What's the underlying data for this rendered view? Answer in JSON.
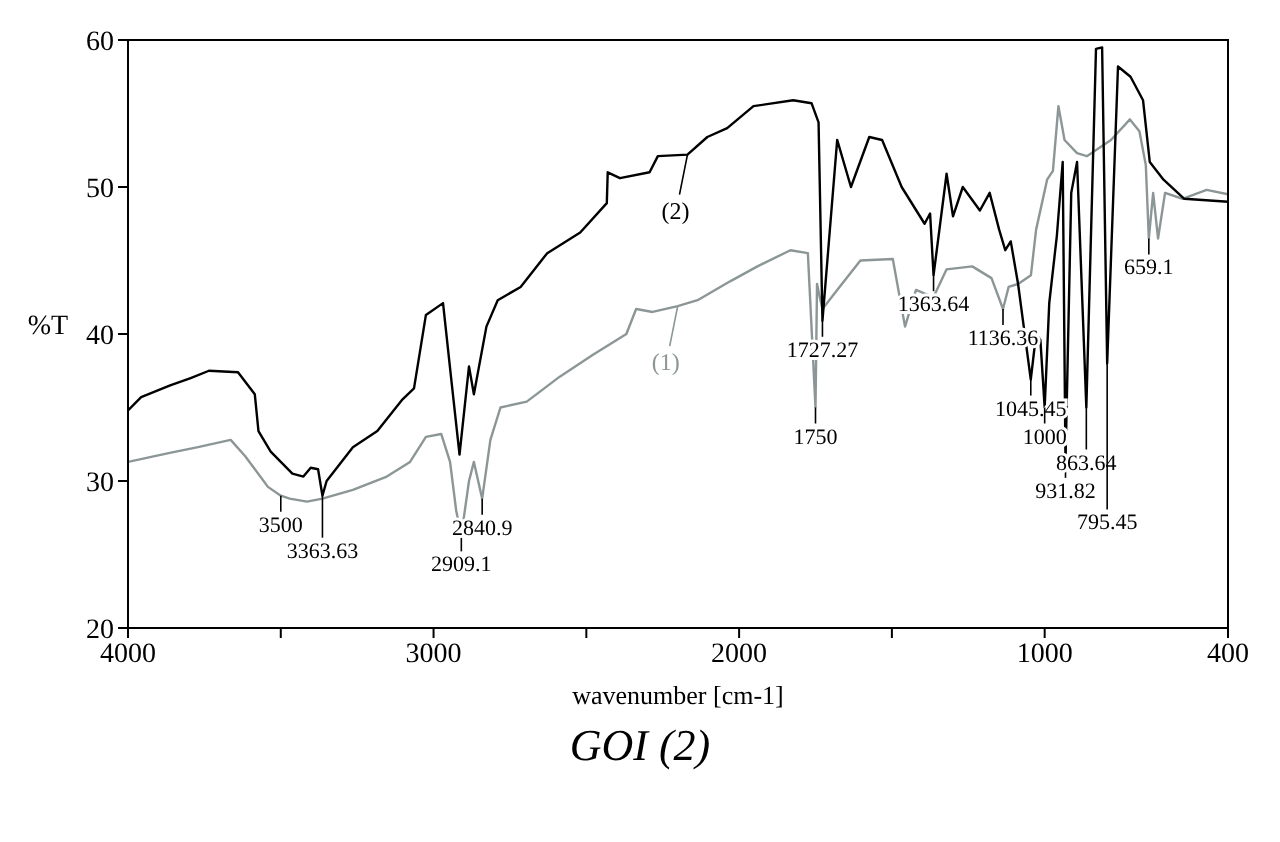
{
  "chart_data": {
    "type": "line",
    "title": "GOI (2)",
    "xlabel": "wavenumber [cm-1]",
    "ylabel": "%T",
    "xlim": [
      4000,
      400
    ],
    "xticks": [
      4000,
      {
        "value": 3500,
        "label": null
      },
      3000,
      {
        "value": 2500,
        "label": null
      },
      2000,
      {
        "value": 1500,
        "label": null
      },
      1000,
      400
    ],
    "ylim": [
      20,
      60
    ],
    "yticks": [
      20,
      30,
      40,
      50,
      60
    ],
    "grid": false,
    "legend": "top",
    "series": [
      {
        "name": "(1)",
        "color": "#8c9696",
        "x": [
          4000,
          3867,
          3771,
          3664,
          3617,
          3542,
          3500,
          3471,
          3414,
          3363.63,
          3264,
          3153,
          3077,
          3025,
          2975,
          2946,
          2926,
          2909.1,
          2884,
          2868,
          2840.9,
          2814,
          2781,
          2695,
          2587,
          2477,
          2369,
          2337,
          2283,
          2201,
          2136,
          2028,
          1940,
          1832,
          1775,
          1750,
          1745,
          1736,
          1727.27,
          1679,
          1603,
          1497,
          1457,
          1421,
          1364,
          1321,
          1237,
          1174,
          1136.36,
          1118,
          1087,
          1045,
          1028,
          992,
          973,
          955,
          935,
          894,
          862,
          783,
          721,
          690,
          669,
          659.1,
          645,
          629,
          606,
          549,
          470,
          400
        ],
        "values": [
          31.3,
          31.9,
          32.3,
          32.8,
          31.7,
          29.6,
          29.0,
          28.8,
          28.6,
          28.8,
          29.4,
          30.3,
          31.3,
          33.0,
          33.2,
          31.3,
          28.0,
          26.3,
          30.0,
          31.3,
          28.8,
          32.8,
          35.0,
          35.4,
          37.1,
          38.6,
          40.0,
          41.7,
          41.5,
          41.9,
          42.3,
          43.6,
          44.6,
          45.7,
          45.5,
          35.0,
          43.4,
          42.5,
          41.7,
          43.0,
          45.0,
          45.1,
          40.5,
          43.0,
          42.5,
          44.4,
          44.6,
          43.8,
          41.7,
          43.2,
          43.4,
          44.0,
          47.1,
          50.5,
          51.1,
          55.5,
          53.2,
          52.3,
          52.1,
          53.2,
          54.6,
          53.8,
          51.5,
          46.5,
          49.6,
          46.5,
          49.6,
          49.2,
          49.8,
          49.5
        ]
      },
      {
        "name": "(2)",
        "color": "#000000",
        "x": [
          4000,
          3957,
          3862,
          3795,
          3735,
          3640,
          3585,
          3573,
          3533,
          3462,
          3426,
          3402,
          3378,
          3363.63,
          3350,
          3264,
          3184,
          3104,
          3064,
          3025,
          2969,
          2943,
          2915,
          2884,
          2868,
          2827,
          2790,
          2715,
          2628,
          2520,
          2433,
          2430,
          2390,
          2293,
          2266,
          2169,
          2104,
          2039,
          1953,
          1823,
          1763,
          1740,
          1727.27,
          1679,
          1634,
          1574,
          1532,
          1468,
          1393,
          1375,
          1363.64,
          1321,
          1300,
          1268,
          1212,
          1180,
          1149,
          1129,
          1111,
          1087,
          1064,
          1045.45,
          1028,
          1014,
          1000,
          985,
          960,
          941,
          931.82,
          913,
          894,
          863.64,
          832,
          812,
          795.45,
          760,
          719,
          678,
          656,
          611,
          543,
          400
        ],
        "values": [
          34.8,
          35.7,
          36.5,
          37.0,
          37.5,
          37.4,
          35.9,
          33.4,
          32.0,
          30.5,
          30.3,
          30.9,
          30.8,
          29.0,
          30.0,
          32.3,
          33.4,
          35.5,
          36.3,
          41.3,
          42.1,
          37.1,
          31.8,
          37.8,
          35.9,
          40.5,
          42.3,
          43.2,
          45.5,
          46.9,
          48.9,
          51.0,
          50.6,
          51.0,
          52.1,
          52.2,
          53.4,
          54.0,
          55.5,
          55.9,
          55.7,
          54.4,
          40.9,
          53.2,
          50.0,
          53.4,
          53.2,
          50.0,
          47.5,
          48.2,
          44.0,
          50.9,
          48.0,
          50.0,
          48.4,
          49.6,
          47.1,
          45.7,
          46.3,
          43.4,
          39.8,
          36.9,
          40.0,
          39.6,
          35.0,
          42.1,
          46.7,
          51.7,
          31.3,
          49.6,
          51.7,
          35.0,
          59.4,
          59.5,
          38.0,
          58.2,
          57.5,
          55.9,
          51.7,
          50.5,
          49.2,
          49.0
        ]
      }
    ],
    "annotations": [
      {
        "text": "3500",
        "x": 3500,
        "y": 29.0
      },
      {
        "text": "3363.63",
        "x": 3363.63,
        "y": 29.0
      },
      {
        "text": "2909.1",
        "x": 2909.1,
        "y": 26.3
      },
      {
        "text": "2840.9",
        "x": 2840.9,
        "y": 28.8
      },
      {
        "text": "1750",
        "x": 1750,
        "y": 35.0
      },
      {
        "text": "1727.27",
        "x": 1727.27,
        "y": 40.9
      },
      {
        "text": "1363.64",
        "x": 1363.64,
        "y": 44.0
      },
      {
        "text": "1136.36",
        "x": 1136.36,
        "y": 41.7
      },
      {
        "text": "1045.45",
        "x": 1045.45,
        "y": 36.9
      },
      {
        "text": "1000",
        "x": 1000,
        "y": 35.0
      },
      {
        "text": "931.82",
        "x": 931.82,
        "y": 31.3
      },
      {
        "text": "863.64",
        "x": 863.64,
        "y": 35.0
      },
      {
        "text": "795.45",
        "x": 795.45,
        "y": 38.0
      },
      {
        "text": "659.1",
        "x": 659.1,
        "y": 46.5
      }
    ]
  }
}
